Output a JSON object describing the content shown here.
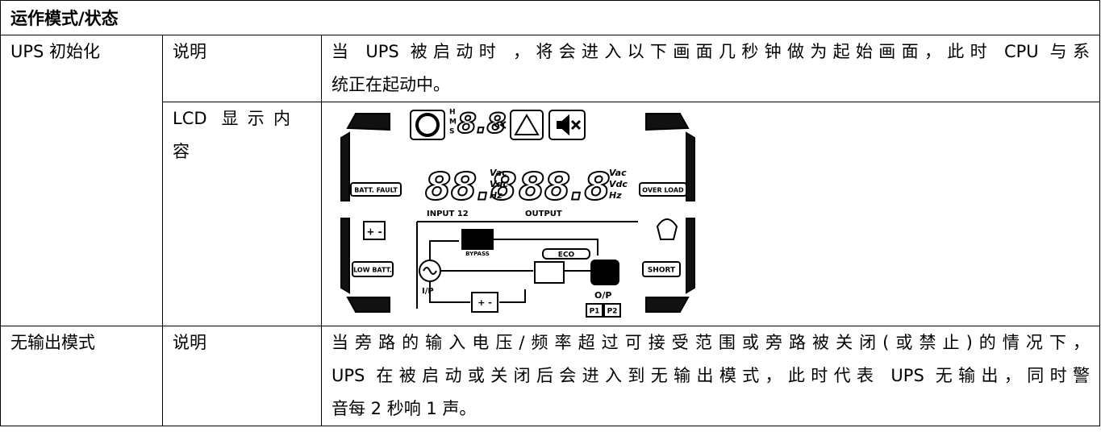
{
  "header": {
    "title": "运作模式/状态"
  },
  "modes": [
    {
      "name": "UPS 初始化",
      "description": {
        "label": "说明",
        "lines": [
          "当 UPS 被启动时 ，将会进入以下画面几秒钟做为起始画面，此时 CPU 与系",
          "统正在起动中。"
        ]
      },
      "display": {
        "label_lines": [
          "LCD 显示内",
          "容"
        ],
        "lcd": {
          "top_digits": "8.8",
          "hms": [
            "H",
            "M",
            "S"
          ],
          "input_digits": "88.8",
          "output_digits": "88.8",
          "units": [
            "Vac",
            "Vdc",
            "Hz"
          ],
          "input_label": "INPUT 12",
          "output_label": "OUTPUT",
          "batt_fault": "BATT. FAULT",
          "over_load": "OVER LOAD",
          "low_batt": "LOW BATT.",
          "short": "SHORT",
          "battery": "+ -",
          "eco": "ECO",
          "bypass": "BYPASS",
          "ip": "I/P",
          "op": "O/P",
          "p1": "P1",
          "p2": "P2"
        }
      }
    },
    {
      "name": "无输出模式",
      "description": {
        "label": "说明",
        "lines": [
          "当旁路的输入电压/频率超过可接受范围或旁路被关闭(或禁止)的情况下，",
          "UPS 在被启动或关闭后会进入到无输出模式，此时代表 UPS 无输出，同时警",
          "音每 2 秒响 1 声。"
        ]
      }
    }
  ]
}
